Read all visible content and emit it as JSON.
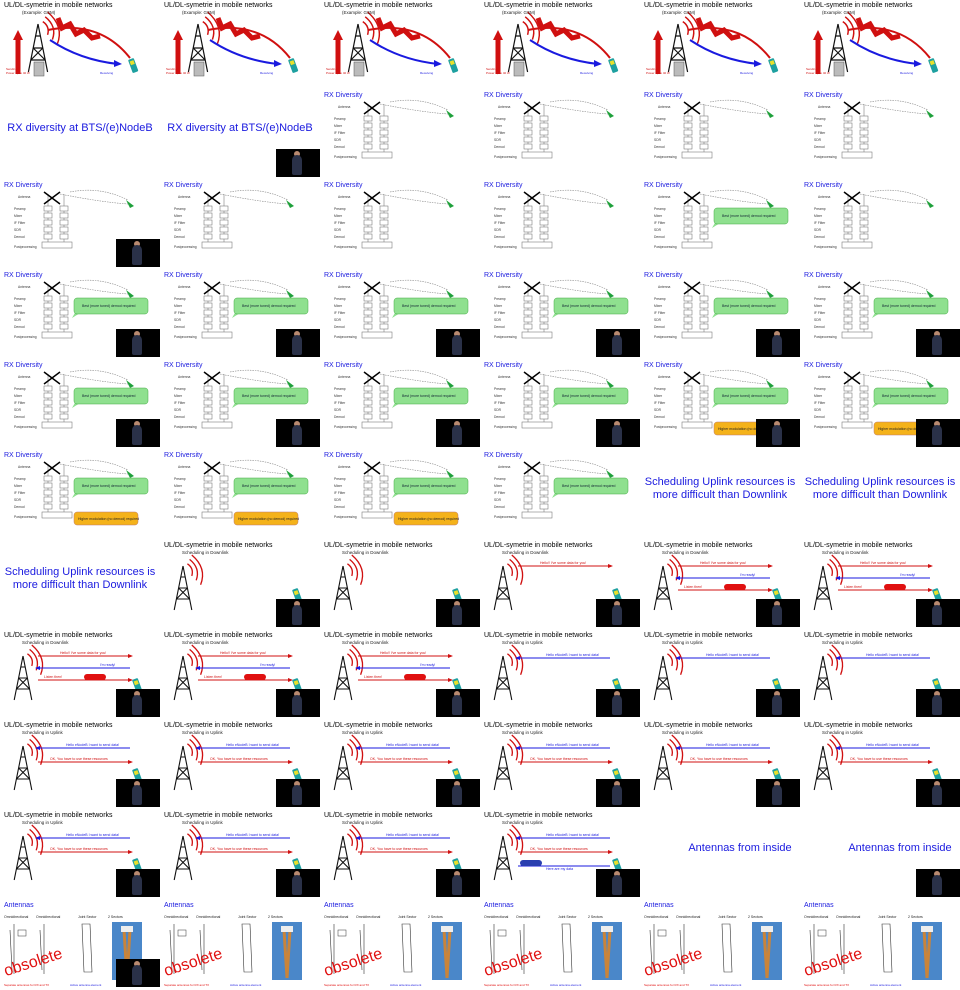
{
  "titles": {
    "uldl": "UL/DL-symetrie in mobile networks",
    "example": "(Example: GSM)",
    "downlink": "Scheduling in Downlink",
    "uplink": "Scheduling in Uplink",
    "rx": "RX Diversity",
    "rx_intro": "RX diversity at BTS/(e)NodeB",
    "sched_intro": "Scheduling Uplink resources is more difficult than Downlink",
    "ant_intro": "Antennas from inside",
    "antennas": "Antennas",
    "obsolete": "obsolete"
  },
  "rx_labels": [
    "Antenna",
    "Preamp",
    "Mixer",
    "IF Filter",
    "SDR",
    "Demod",
    "Postprocessing"
  ],
  "bubble_green": "Best (more tuned) demod required",
  "bubble_orange": "Higher modulation (no demod) required",
  "sched_msgs": {
    "dl1": "Hello!! I've some data for you!",
    "dl2": "I'm ready!",
    "dl3": "Listen then!",
    "ul1": "Hello eNodeB I want to send data!",
    "ul2": "OK, You have to use these resources",
    "ul3": "Here are my data"
  },
  "antenna_cols": [
    "Omnidirectional",
    "Omnidirectional",
    "Joint Sector",
    "2 Sectors"
  ],
  "antenna_foot": "Separate antennas for RX and TX",
  "cells": [
    {
      "t": "uldl"
    },
    {
      "t": "uldl"
    },
    {
      "t": "uldl"
    },
    {
      "t": "uldl"
    },
    {
      "t": "uldl"
    },
    {
      "t": "uldl"
    },
    {
      "t": "rxintro"
    },
    {
      "t": "rxintro",
      "cam": true
    },
    {
      "t": "rx"
    },
    {
      "t": "rx"
    },
    {
      "t": "rx"
    },
    {
      "t": "rx"
    },
    {
      "t": "rx",
      "cam": true
    },
    {
      "t": "rx"
    },
    {
      "t": "rx"
    },
    {
      "t": "rx"
    },
    {
      "t": "rx",
      "g": true
    },
    {
      "t": "rx"
    },
    {
      "t": "rx",
      "g": true,
      "cam": true
    },
    {
      "t": "rx",
      "g": true,
      "cam": true
    },
    {
      "t": "rx",
      "g": true,
      "cam": true
    },
    {
      "t": "rx",
      "g": true,
      "cam": true
    },
    {
      "t": "rx",
      "g": true,
      "cam": true
    },
    {
      "t": "rx",
      "g": true,
      "cam": true
    },
    {
      "t": "rx",
      "g": true,
      "cam": true
    },
    {
      "t": "rx",
      "g": true,
      "cam": true
    },
    {
      "t": "rx",
      "g": true,
      "cam": true
    },
    {
      "t": "rx",
      "g": true,
      "cam": true
    },
    {
      "t": "rx",
      "g": true,
      "o": true,
      "cam": true
    },
    {
      "t": "rx",
      "g": true,
      "o": true,
      "cam": true
    },
    {
      "t": "rx",
      "g": true,
      "o": true
    },
    {
      "t": "rx",
      "g": true,
      "o": true
    },
    {
      "t": "rx",
      "g": true,
      "o": true
    },
    {
      "t": "rx",
      "g": true
    },
    {
      "t": "schedintro"
    },
    {
      "t": "schedintro"
    },
    {
      "t": "schedintro"
    },
    {
      "t": "dl",
      "n": 0,
      "cam": true
    },
    {
      "t": "dl",
      "n": 0,
      "cam": true
    },
    {
      "t": "dl",
      "n": 1,
      "cam": true
    },
    {
      "t": "dl",
      "n": 3,
      "cam": true
    },
    {
      "t": "dl",
      "n": 3,
      "cam": true
    },
    {
      "t": "dl",
      "n": 3,
      "cam": true
    },
    {
      "t": "dl",
      "n": 3,
      "cam": true
    },
    {
      "t": "dl",
      "n": 3,
      "cam": true
    },
    {
      "t": "ul",
      "n": 1,
      "cam": true
    },
    {
      "t": "ul",
      "n": 1,
      "cam": true
    },
    {
      "t": "ul",
      "n": 1,
      "cam": true
    },
    {
      "t": "ul",
      "n": 2,
      "cam": true
    },
    {
      "t": "ul",
      "n": 2,
      "cam": true
    },
    {
      "t": "ul",
      "n": 2,
      "cam": true
    },
    {
      "t": "ul",
      "n": 2,
      "cam": true
    },
    {
      "t": "ul",
      "n": 2,
      "cam": true
    },
    {
      "t": "ul",
      "n": 2,
      "cam": true
    },
    {
      "t": "ul",
      "n": 2,
      "cam": true
    },
    {
      "t": "ul",
      "n": 2,
      "cam": true
    },
    {
      "t": "ul",
      "n": 2,
      "cam": true
    },
    {
      "t": "ul",
      "n": 3,
      "cam": true
    },
    {
      "t": "antintro"
    },
    {
      "t": "antintro",
      "cam": true
    },
    {
      "t": "ant",
      "cam": true
    },
    {
      "t": "ant"
    },
    {
      "t": "ant"
    },
    {
      "t": "ant"
    },
    {
      "t": "ant"
    },
    {
      "t": "ant"
    }
  ]
}
